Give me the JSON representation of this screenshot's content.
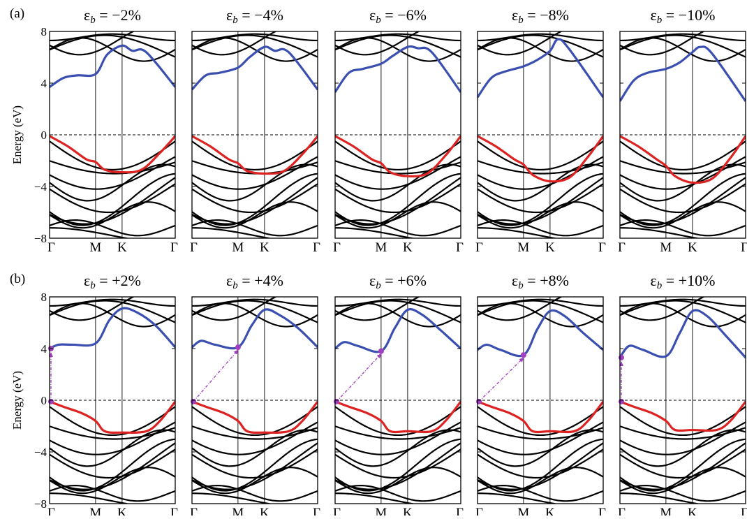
{
  "figure": {
    "rows": [
      {
        "label": "(a)",
        "ylabel": "Energy (eV)"
      },
      {
        "label": "(b)",
        "ylabel": "Energy (eV)"
      }
    ]
  },
  "colors": {
    "band": "#000000",
    "cb": "#3a4fb0",
    "vb": "#dd2222",
    "arrow": "#a040c0"
  },
  "chart_data": [
    {
      "type": "line",
      "panel_title": "εb = −2%",
      "title_symbol": "ε",
      "title_sub": "b",
      "title_value": " = −2%",
      "xticks": [
        "Γ",
        "M",
        "K",
        "Γ"
      ],
      "x_positions": [
        0,
        1,
        1.577,
        2.732
      ],
      "ylim": [
        -8,
        8
      ],
      "yticks": [
        -8,
        -4,
        0,
        4,
        8
      ],
      "ylabel": "Energy (eV)",
      "fermi_level": 0,
      "cb_min": {
        "x": 0,
        "y": 3.7
      },
      "vb_max": {
        "x": 0,
        "y": -0.1
      },
      "transition": null,
      "highlight_cb": {
        "x": [
          0,
          0.3,
          0.6,
          1.0,
          1.25,
          1.577,
          1.8,
          2.1,
          2.732
        ],
        "y": [
          3.7,
          4.4,
          4.6,
          4.7,
          6.2,
          6.9,
          6.5,
          6.4,
          3.7
        ]
      },
      "highlight_vb": {
        "x": [
          0,
          0.4,
          0.8,
          1.0,
          1.2,
          1.577,
          2.0,
          2.4,
          2.732
        ],
        "y": [
          -0.1,
          -0.9,
          -1.9,
          -2.1,
          -2.7,
          -2.9,
          -2.7,
          -1.4,
          -0.1
        ]
      }
    },
    {
      "type": "line",
      "panel_title": "εb = −4%",
      "title_symbol": "ε",
      "title_sub": "b",
      "title_value": " = −4%",
      "xticks": [
        "Γ",
        "M",
        "K",
        "Γ"
      ],
      "x_positions": [
        0,
        1,
        1.577,
        2.732
      ],
      "ylim": [
        -8,
        8
      ],
      "yticks": [
        -8,
        -4,
        0,
        4,
        8
      ],
      "ylabel": "",
      "fermi_level": 0,
      "cb_min": {
        "x": 0,
        "y": 3.5
      },
      "vb_max": {
        "x": 0,
        "y": -0.1
      },
      "transition": null,
      "highlight_cb": {
        "x": [
          0,
          0.3,
          0.6,
          1.0,
          1.25,
          1.577,
          1.8,
          2.1,
          2.732
        ],
        "y": [
          3.5,
          4.6,
          4.8,
          5.2,
          6.0,
          6.8,
          6.5,
          6.4,
          3.5
        ]
      },
      "highlight_vb": {
        "x": [
          0,
          0.4,
          0.8,
          1.0,
          1.2,
          1.577,
          2.0,
          2.4,
          2.732
        ],
        "y": [
          -0.1,
          -0.9,
          -1.9,
          -2.2,
          -2.8,
          -3.0,
          -2.8,
          -1.5,
          -0.1
        ]
      }
    },
    {
      "type": "line",
      "panel_title": "εb = −6%",
      "title_symbol": "ε",
      "title_sub": "b",
      "title_value": " = −6%",
      "xticks": [
        "Γ",
        "M",
        "K",
        "Γ"
      ],
      "x_positions": [
        0,
        1,
        1.577,
        2.732
      ],
      "ylim": [
        -8,
        8
      ],
      "yticks": [
        -8,
        -4,
        0,
        4,
        8
      ],
      "ylabel": "",
      "fermi_level": 0,
      "cb_min": {
        "x": 0,
        "y": 3.3
      },
      "vb_max": {
        "x": 0,
        "y": -0.1
      },
      "transition": null,
      "highlight_cb": {
        "x": [
          0,
          0.3,
          0.6,
          1.0,
          1.25,
          1.577,
          1.8,
          2.1,
          2.732
        ],
        "y": [
          3.3,
          4.8,
          5.1,
          5.5,
          6.1,
          6.8,
          6.7,
          6.4,
          3.3
        ]
      },
      "highlight_vb": {
        "x": [
          0,
          0.4,
          0.8,
          1.0,
          1.2,
          1.577,
          2.0,
          2.4,
          2.732
        ],
        "y": [
          -0.1,
          -0.9,
          -1.9,
          -2.2,
          -2.9,
          -3.2,
          -3.0,
          -1.6,
          -0.1
        ]
      }
    },
    {
      "type": "line",
      "panel_title": "εb = −8%",
      "title_symbol": "ε",
      "title_sub": "b",
      "title_value": " = −8%",
      "xticks": [
        "Γ",
        "M",
        "K",
        "Γ"
      ],
      "x_positions": [
        0,
        1,
        1.577,
        2.732
      ],
      "ylim": [
        -8,
        8
      ],
      "yticks": [
        -8,
        -4,
        0,
        4,
        8
      ],
      "ylabel": "",
      "fermi_level": 0,
      "cb_min": {
        "x": 0,
        "y": 2.9
      },
      "vb_max": {
        "x": 0,
        "y": -0.1
      },
      "transition": null,
      "highlight_cb": {
        "x": [
          0,
          0.3,
          0.6,
          1.0,
          1.3,
          1.577,
          1.75,
          2.0,
          2.732
        ],
        "y": [
          2.9,
          4.4,
          4.9,
          5.3,
          5.8,
          6.5,
          7.4,
          6.6,
          2.9
        ]
      },
      "highlight_vb": {
        "x": [
          0,
          0.4,
          0.8,
          1.0,
          1.2,
          1.577,
          2.0,
          2.4,
          2.732
        ],
        "y": [
          -0.1,
          -0.9,
          -1.9,
          -2.3,
          -3.1,
          -3.6,
          -3.3,
          -1.7,
          -0.1
        ]
      }
    },
    {
      "type": "line",
      "panel_title": "εb = −10%",
      "title_symbol": "ε",
      "title_sub": "b",
      "title_value": " = −10%",
      "xticks": [
        "Γ",
        "M",
        "K",
        "Γ"
      ],
      "x_positions": [
        0,
        1,
        1.577,
        2.732
      ],
      "ylim": [
        -8,
        8
      ],
      "yticks": [
        -8,
        -4,
        0,
        4,
        8
      ],
      "ylabel": "",
      "fermi_level": 0,
      "cb_min": {
        "x": 0,
        "y": 2.6
      },
      "vb_max": {
        "x": 0,
        "y": -0.1
      },
      "transition": null,
      "highlight_cb": {
        "x": [
          0,
          0.3,
          0.6,
          1.0,
          1.3,
          1.577,
          1.75,
          2.0,
          2.732
        ],
        "y": [
          2.6,
          4.2,
          4.8,
          5.1,
          5.6,
          6.4,
          6.8,
          6.3,
          2.6
        ]
      },
      "highlight_vb": {
        "x": [
          0,
          0.4,
          0.8,
          1.0,
          1.2,
          1.577,
          2.0,
          2.4,
          2.732
        ],
        "y": [
          -0.1,
          -0.9,
          -1.9,
          -2.4,
          -3.2,
          -3.7,
          -3.4,
          -1.8,
          -0.1
        ]
      }
    },
    {
      "type": "line",
      "panel_title": "εb = +2%",
      "title_symbol": "ε",
      "title_sub": "b",
      "title_value": " = +2%",
      "xticks": [
        "Γ",
        "M",
        "K",
        "Γ"
      ],
      "x_positions": [
        0,
        1,
        1.577,
        2.732
      ],
      "ylim": [
        -8,
        8
      ],
      "yticks": [
        -8,
        -4,
        0,
        4,
        8
      ],
      "ylabel": "Energy (eV)",
      "fermi_level": 0,
      "cb_min": {
        "x": 0,
        "y": 4.0
      },
      "vb_max": {
        "x": 0,
        "y": -0.1
      },
      "transition": {
        "from": {
          "x": 0,
          "y": -0.1
        },
        "to": {
          "x": 0,
          "y": 4.0
        }
      },
      "highlight_cb": {
        "x": [
          0,
          0.2,
          0.5,
          1.0,
          1.3,
          1.577,
          1.9,
          2.3,
          2.732
        ],
        "y": [
          4.0,
          4.3,
          4.3,
          4.4,
          6.2,
          7.1,
          6.8,
          5.8,
          4.1
        ]
      },
      "highlight_vb": {
        "x": [
          0,
          0.3,
          0.7,
          1.0,
          1.2,
          1.577,
          2.1,
          2.4,
          2.732
        ],
        "y": [
          -0.1,
          -0.5,
          -1.0,
          -1.6,
          -2.4,
          -2.5,
          -2.4,
          -1.6,
          -0.1
        ]
      }
    },
    {
      "type": "line",
      "panel_title": "εb = +4%",
      "title_symbol": "ε",
      "title_sub": "b",
      "title_value": " = +4%",
      "xticks": [
        "Γ",
        "M",
        "K",
        "Γ"
      ],
      "x_positions": [
        0,
        1,
        1.577,
        2.732
      ],
      "ylim": [
        -8,
        8
      ],
      "yticks": [
        -8,
        -4,
        0,
        4,
        8
      ],
      "ylabel": "",
      "fermi_level": 0,
      "cb_min": {
        "x": 1,
        "y": 4.1
      },
      "vb_max": {
        "x": 0,
        "y": -0.1
      },
      "transition": {
        "from": {
          "x": 0,
          "y": -0.1
        },
        "to": {
          "x": 1,
          "y": 4.1
        }
      },
      "highlight_cb": {
        "x": [
          0,
          0.2,
          0.5,
          1.0,
          1.3,
          1.577,
          1.9,
          2.3,
          2.732
        ],
        "y": [
          4.1,
          4.6,
          4.3,
          4.1,
          5.8,
          7.0,
          6.6,
          5.6,
          4.1
        ]
      },
      "highlight_vb": {
        "x": [
          0,
          0.3,
          0.7,
          1.0,
          1.2,
          1.577,
          2.1,
          2.4,
          2.732
        ],
        "y": [
          -0.1,
          -0.5,
          -1.0,
          -1.6,
          -2.4,
          -2.5,
          -2.4,
          -1.6,
          -0.1
        ]
      }
    },
    {
      "type": "line",
      "panel_title": "εb = +6%",
      "title_symbol": "ε",
      "title_sub": "b",
      "title_value": " = +6%",
      "xticks": [
        "Γ",
        "M",
        "K",
        "Γ"
      ],
      "x_positions": [
        0,
        1,
        1.577,
        2.732
      ],
      "ylim": [
        -8,
        8
      ],
      "yticks": [
        -8,
        -4,
        0,
        4,
        8
      ],
      "ylabel": "",
      "fermi_level": 0,
      "cb_min": {
        "x": 1,
        "y": 3.8
      },
      "vb_max": {
        "x": 0,
        "y": -0.1
      },
      "transition": {
        "from": {
          "x": 0,
          "y": -0.1
        },
        "to": {
          "x": 1,
          "y": 3.8
        }
      },
      "highlight_cb": {
        "x": [
          0,
          0.2,
          0.5,
          1.0,
          1.3,
          1.577,
          1.9,
          2.3,
          2.732
        ],
        "y": [
          4.0,
          4.5,
          4.2,
          3.8,
          5.6,
          7.0,
          6.6,
          5.4,
          4.0
        ]
      },
      "highlight_vb": {
        "x": [
          0,
          0.3,
          0.7,
          1.0,
          1.2,
          1.577,
          2.1,
          2.4,
          2.732
        ],
        "y": [
          -0.1,
          -0.5,
          -1.0,
          -1.6,
          -2.4,
          -2.4,
          -2.4,
          -1.6,
          -0.1
        ]
      }
    },
    {
      "type": "line",
      "panel_title": "εb = +8%",
      "title_symbol": "ε",
      "title_sub": "b",
      "title_value": " = +8%",
      "xticks": [
        "Γ",
        "M",
        "K",
        "Γ"
      ],
      "x_positions": [
        0,
        1,
        1.577,
        2.732
      ],
      "ylim": [
        -8,
        8
      ],
      "yticks": [
        -8,
        -4,
        0,
        4,
        8
      ],
      "ylabel": "",
      "fermi_level": 0,
      "cb_min": {
        "x": 1,
        "y": 3.5
      },
      "vb_max": {
        "x": 0,
        "y": -0.1
      },
      "transition": {
        "from": {
          "x": 0,
          "y": -0.1
        },
        "to": {
          "x": 1,
          "y": 3.5
        }
      },
      "highlight_cb": {
        "x": [
          0,
          0.2,
          0.5,
          1.0,
          1.3,
          1.577,
          1.9,
          2.3,
          2.732
        ],
        "y": [
          3.9,
          4.3,
          3.9,
          3.5,
          5.5,
          6.9,
          6.5,
          5.2,
          3.9
        ]
      },
      "highlight_vb": {
        "x": [
          0,
          0.3,
          0.7,
          1.0,
          1.2,
          1.577,
          2.1,
          2.4,
          2.732
        ],
        "y": [
          -0.1,
          -0.5,
          -1.0,
          -1.6,
          -2.4,
          -2.4,
          -2.4,
          -1.6,
          -0.1
        ]
      }
    },
    {
      "type": "line",
      "panel_title": "εb = +10%",
      "title_symbol": "ε",
      "title_sub": "b",
      "title_value": " = +10%",
      "xticks": [
        "Γ",
        "M",
        "K",
        "Γ"
      ],
      "x_positions": [
        0,
        1,
        1.577,
        2.732
      ],
      "ylim": [
        -8,
        8
      ],
      "yticks": [
        -8,
        -4,
        0,
        4,
        8
      ],
      "ylabel": "",
      "fermi_level": 0,
      "cb_min": {
        "x": 0,
        "y": 3.3
      },
      "vb_max": {
        "x": 0,
        "y": -0.1
      },
      "transition": {
        "from": {
          "x": 0,
          "y": -0.1
        },
        "to": {
          "x": 0,
          "y": 3.3
        }
      },
      "highlight_cb": {
        "x": [
          0,
          0.2,
          0.5,
          1.0,
          1.3,
          1.577,
          1.9,
          2.3,
          2.732
        ],
        "y": [
          3.3,
          4.2,
          3.9,
          3.4,
          5.2,
          6.9,
          6.5,
          5.0,
          3.3
        ]
      },
      "highlight_vb": {
        "x": [
          0,
          0.3,
          0.7,
          1.0,
          1.2,
          1.577,
          2.1,
          2.4,
          2.732
        ],
        "y": [
          -0.1,
          -0.5,
          -1.0,
          -1.6,
          -2.3,
          -2.3,
          -2.3,
          -1.6,
          -0.1
        ]
      }
    }
  ]
}
